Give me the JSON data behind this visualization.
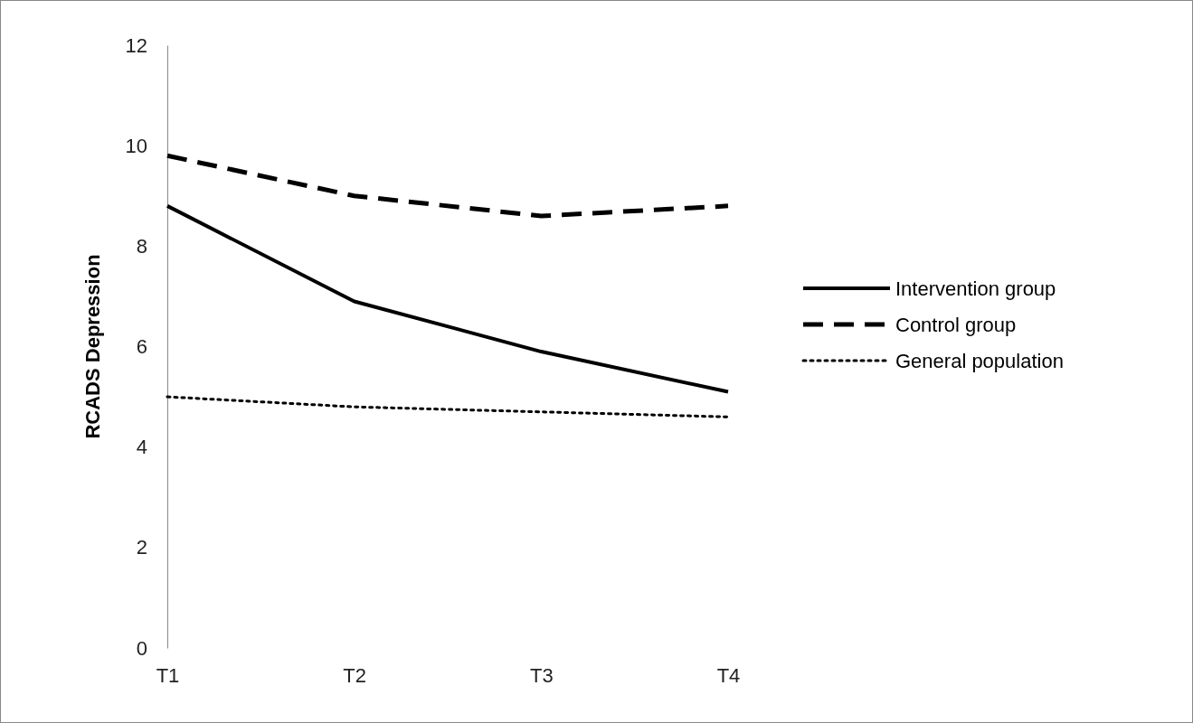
{
  "chart_data": {
    "type": "line",
    "ylabel": "RCADS Depression",
    "categories": [
      "T1",
      "T2",
      "T3",
      "T4"
    ],
    "series": [
      {
        "name": "Intervention group",
        "color": "#000000",
        "line_style": "solid",
        "values": [
          8.8,
          6.9,
          5.9,
          5.1
        ]
      },
      {
        "name": "Control group",
        "color": "#000000",
        "line_style": "dashed",
        "values": [
          9.8,
          9.0,
          8.6,
          8.8
        ]
      },
      {
        "name": "General population",
        "color": "#000000",
        "line_style": "dotted",
        "values": [
          5.0,
          4.8,
          4.7,
          4.6
        ]
      }
    ],
    "ylim": [
      0,
      12
    ],
    "yticks": [
      0,
      2,
      4,
      6,
      8,
      10,
      12
    ],
    "grid": false,
    "legend": "right",
    "marker": "none"
  }
}
